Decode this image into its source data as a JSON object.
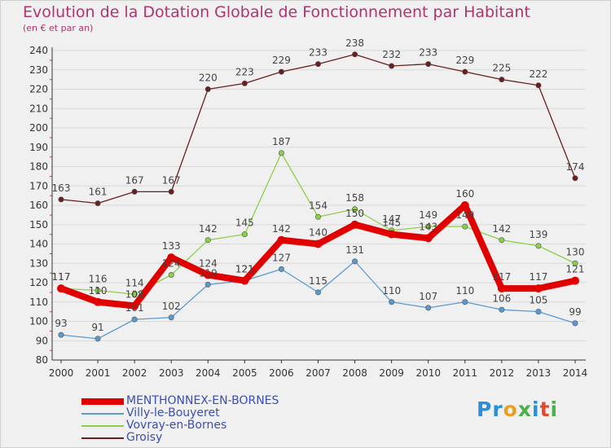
{
  "header": {
    "title": "Evolution de la Dotation Globale de Fonctionnement par Habitant",
    "subtitle": "(en € et par an)"
  },
  "logo": {
    "text": "Proxiti"
  },
  "colors": {
    "background": "#f0f0f0",
    "grid": "#d8d8d8",
    "title": "#b0346e",
    "legend_text": "#3b4fb0",
    "logo": [
      "#2a8fd6",
      "#4ab04a",
      "#e8a020",
      "#e04a2a"
    ]
  },
  "chart_data": {
    "type": "line",
    "title": "Evolution de la Dotation Globale de Fonctionnement par Habitant",
    "subtitle": "(en € et par an)",
    "xlabel": "",
    "ylabel": "",
    "x": [
      "2000",
      "2001",
      "2002",
      "2003",
      "2004",
      "2005",
      "2006",
      "2007",
      "2008",
      "2009",
      "2010",
      "2011",
      "2012",
      "2013",
      "2014"
    ],
    "ylim": [
      80,
      240
    ],
    "yticks": [
      80,
      90,
      100,
      110,
      120,
      130,
      140,
      150,
      160,
      170,
      180,
      190,
      200,
      210,
      220,
      230,
      240
    ],
    "grid": "horizontal",
    "legend_position": "bottom-left",
    "series": [
      {
        "name": "MENTHONNEX-EN-BORNES",
        "color": "#e00000",
        "style": "thick",
        "values": [
          117,
          110,
          108,
          133,
          124,
          121,
          142,
          140,
          150,
          145,
          143,
          160,
          117,
          117,
          121
        ]
      },
      {
        "name": "Villy-le-Bouyeret",
        "color": "#5b9ad0",
        "style": "thin",
        "values": [
          93,
          91,
          101,
          102,
          119,
          121,
          127,
          115,
          131,
          110,
          107,
          110,
          106,
          105,
          99
        ]
      },
      {
        "name": "Vovray-en-Bornes",
        "color": "#8cd04a",
        "style": "thin",
        "values": [
          117,
          116,
          114,
          124,
          142,
          145,
          187,
          154,
          158,
          147,
          149,
          149,
          142,
          139,
          130
        ]
      },
      {
        "name": "Groisy",
        "color": "#6b1e1e",
        "style": "thin",
        "values": [
          163,
          161,
          167,
          167,
          220,
          223,
          229,
          233,
          238,
          232,
          233,
          229,
          225,
          222,
          174
        ]
      }
    ]
  }
}
